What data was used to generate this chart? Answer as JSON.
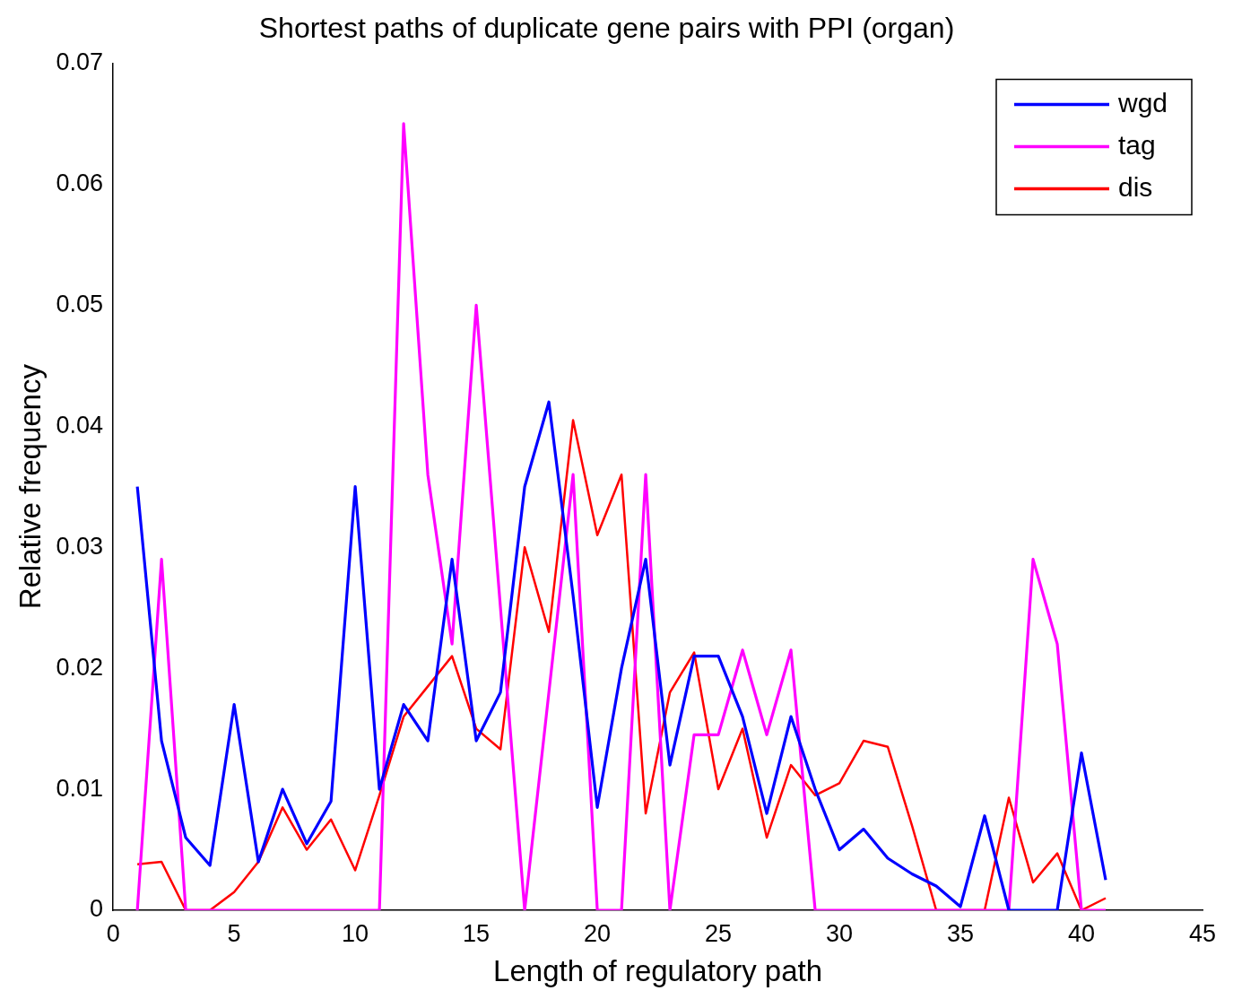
{
  "chart_data": {
    "type": "line",
    "title": "Shortest paths of duplicate gene pairs with PPI (organ)",
    "xlabel": "Length of regulatory path",
    "ylabel": "Relative frequency",
    "x": [
      1,
      2,
      3,
      4,
      5,
      6,
      7,
      8,
      9,
      10,
      11,
      12,
      13,
      14,
      15,
      16,
      17,
      18,
      19,
      20,
      21,
      22,
      23,
      24,
      25,
      26,
      27,
      28,
      29,
      30,
      31,
      32,
      33,
      34,
      35,
      36,
      37,
      38,
      39,
      40,
      41
    ],
    "series": [
      {
        "name": "wgd",
        "color": "#0000ff",
        "values": [
          0.035,
          0.014,
          0.006,
          0.0037,
          0.017,
          0.004,
          0.01,
          0.0055,
          0.009,
          0.035,
          0.01,
          0.017,
          0.014,
          0.029,
          0.014,
          0.018,
          0.035,
          0.042,
          0.026,
          0.0085,
          0.02,
          0.029,
          0.012,
          0.021,
          0.021,
          0.016,
          0.008,
          0.016,
          0.01,
          0.005,
          0.0067,
          0.0043,
          0.003,
          0.002,
          0.0003,
          0.0078,
          0,
          0,
          0,
          0.013,
          0.0025
        ]
      },
      {
        "name": "tag",
        "color": "#ff00ff",
        "values": [
          0,
          0.029,
          0,
          0,
          0,
          0,
          0,
          0,
          0,
          0,
          0,
          0.065,
          0.036,
          0.022,
          0.05,
          0.025,
          0,
          0.018,
          0.036,
          0,
          0,
          0.036,
          0,
          0.0145,
          0.0145,
          0.0215,
          0.0145,
          0.0215,
          0,
          0,
          0,
          0,
          0,
          0,
          0,
          0,
          0,
          0.029,
          0.022,
          0,
          0
        ]
      },
      {
        "name": "dis",
        "color": "#ff0000",
        "values": [
          0.0038,
          0.004,
          0,
          0,
          0.0015,
          0.004,
          0.0085,
          0.005,
          0.0075,
          0.0033,
          0.0095,
          0.016,
          0.0185,
          0.021,
          0.015,
          0.0133,
          0.03,
          0.023,
          0.0405,
          0.031,
          0.036,
          0.008,
          0.018,
          0.0213,
          0.01,
          0.015,
          0.006,
          0.012,
          0.0095,
          0.0105,
          0.014,
          0.0135,
          0.007,
          0,
          0,
          0,
          0.0093,
          0.0023,
          0.0047,
          0,
          0.001
        ]
      }
    ],
    "xlim": [
      0,
      45
    ],
    "xticks": [
      0,
      5,
      10,
      15,
      20,
      25,
      30,
      35,
      40,
      45
    ],
    "ylim": [
      0,
      0.07
    ],
    "yticks": [
      0,
      0.01,
      0.02,
      0.03,
      0.04,
      0.05,
      0.06,
      0.07
    ],
    "grid": false,
    "legend": "top right",
    "marker": "none",
    "line_style": "solid"
  }
}
